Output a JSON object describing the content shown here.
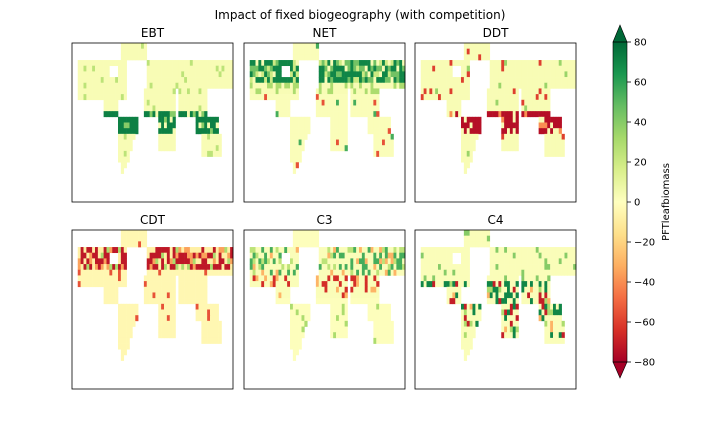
{
  "chart_data": {
    "type": "heatmap",
    "title": "Impact of fixed biogeography (with competition)",
    "panels": [
      {
        "name": "EBT",
        "pattern": "tropics_positive"
      },
      {
        "name": "NET",
        "pattern": "boreal_positive"
      },
      {
        "name": "DDT",
        "pattern": "tropics_negative"
      },
      {
        "name": "CDT",
        "pattern": "boreal_negative"
      },
      {
        "name": "C3",
        "pattern": "mixed_temperate"
      },
      {
        "name": "C4",
        "pattern": "mixed_tropical"
      }
    ],
    "colorbar": {
      "label": "PFTleafbiomass",
      "range": [
        -80,
        80
      ],
      "ticks": [
        "80",
        "60",
        "40",
        "20",
        "0",
        "−20",
        "−40",
        "−60",
        "−80"
      ],
      "colormap": "RdYlGn",
      "extend": "both"
    },
    "colors": [
      "#a50026",
      "#d73027",
      "#f46d43",
      "#fdae61",
      "#fee08b",
      "#ffffbf",
      "#d9ef8b",
      "#a6d96a",
      "#66bd63",
      "#1a9850",
      "#006837"
    ]
  }
}
